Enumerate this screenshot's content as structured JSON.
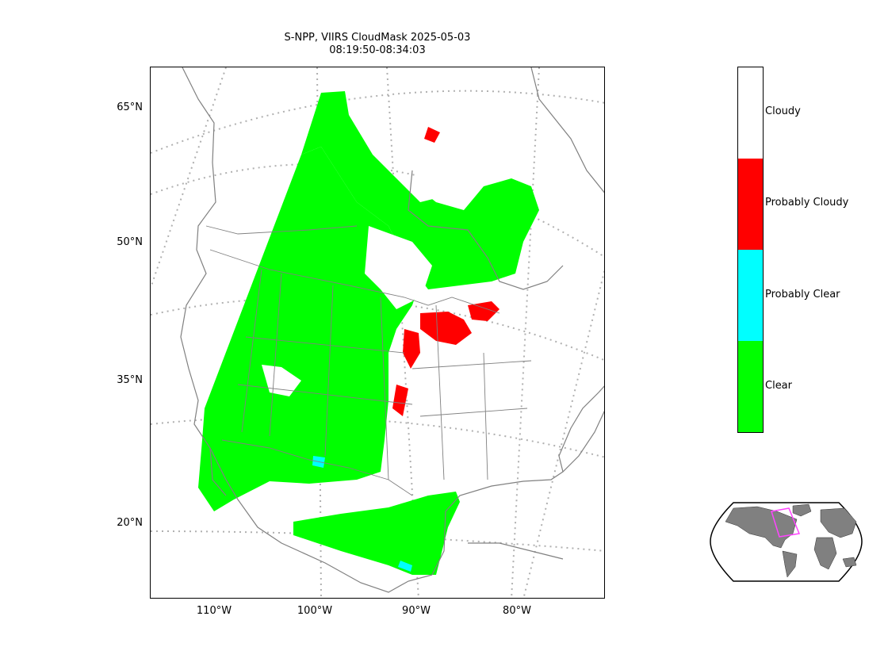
{
  "title": {
    "line1": "S-NPP, VIIRS CloudMask 2025-05-03",
    "line2": "08:19:50-08:34:03"
  },
  "latitude_ticks": [
    {
      "label": "65°N",
      "value": 65
    },
    {
      "label": "50°N",
      "value": 50
    },
    {
      "label": "35°N",
      "value": 35
    },
    {
      "label": "20°N",
      "value": 20
    }
  ],
  "longitude_ticks": [
    {
      "label": "110°W",
      "value": -110
    },
    {
      "label": "100°W",
      "value": -100
    },
    {
      "label": "90°W",
      "value": -90
    },
    {
      "label": "80°W",
      "value": -80
    }
  ],
  "colorbar": {
    "categories": [
      {
        "label": "Cloudy",
        "color": "#ffffff"
      },
      {
        "label": "Probably Cloudy",
        "color": "#ff0000"
      },
      {
        "label": "Probably Clear",
        "color": "#00ffff"
      },
      {
        "label": "Clear",
        "color": "#00ff00"
      }
    ]
  },
  "map_style": {
    "coastline_color": "#808080",
    "border_color": "#808080",
    "gridline_color": "#b0b0b0",
    "gridline_style": "dotted",
    "projection": "lambert-conformal"
  },
  "inset_map": {
    "type": "world-locator",
    "land_color": "#808080",
    "highlight_color": "#ff44ff"
  }
}
